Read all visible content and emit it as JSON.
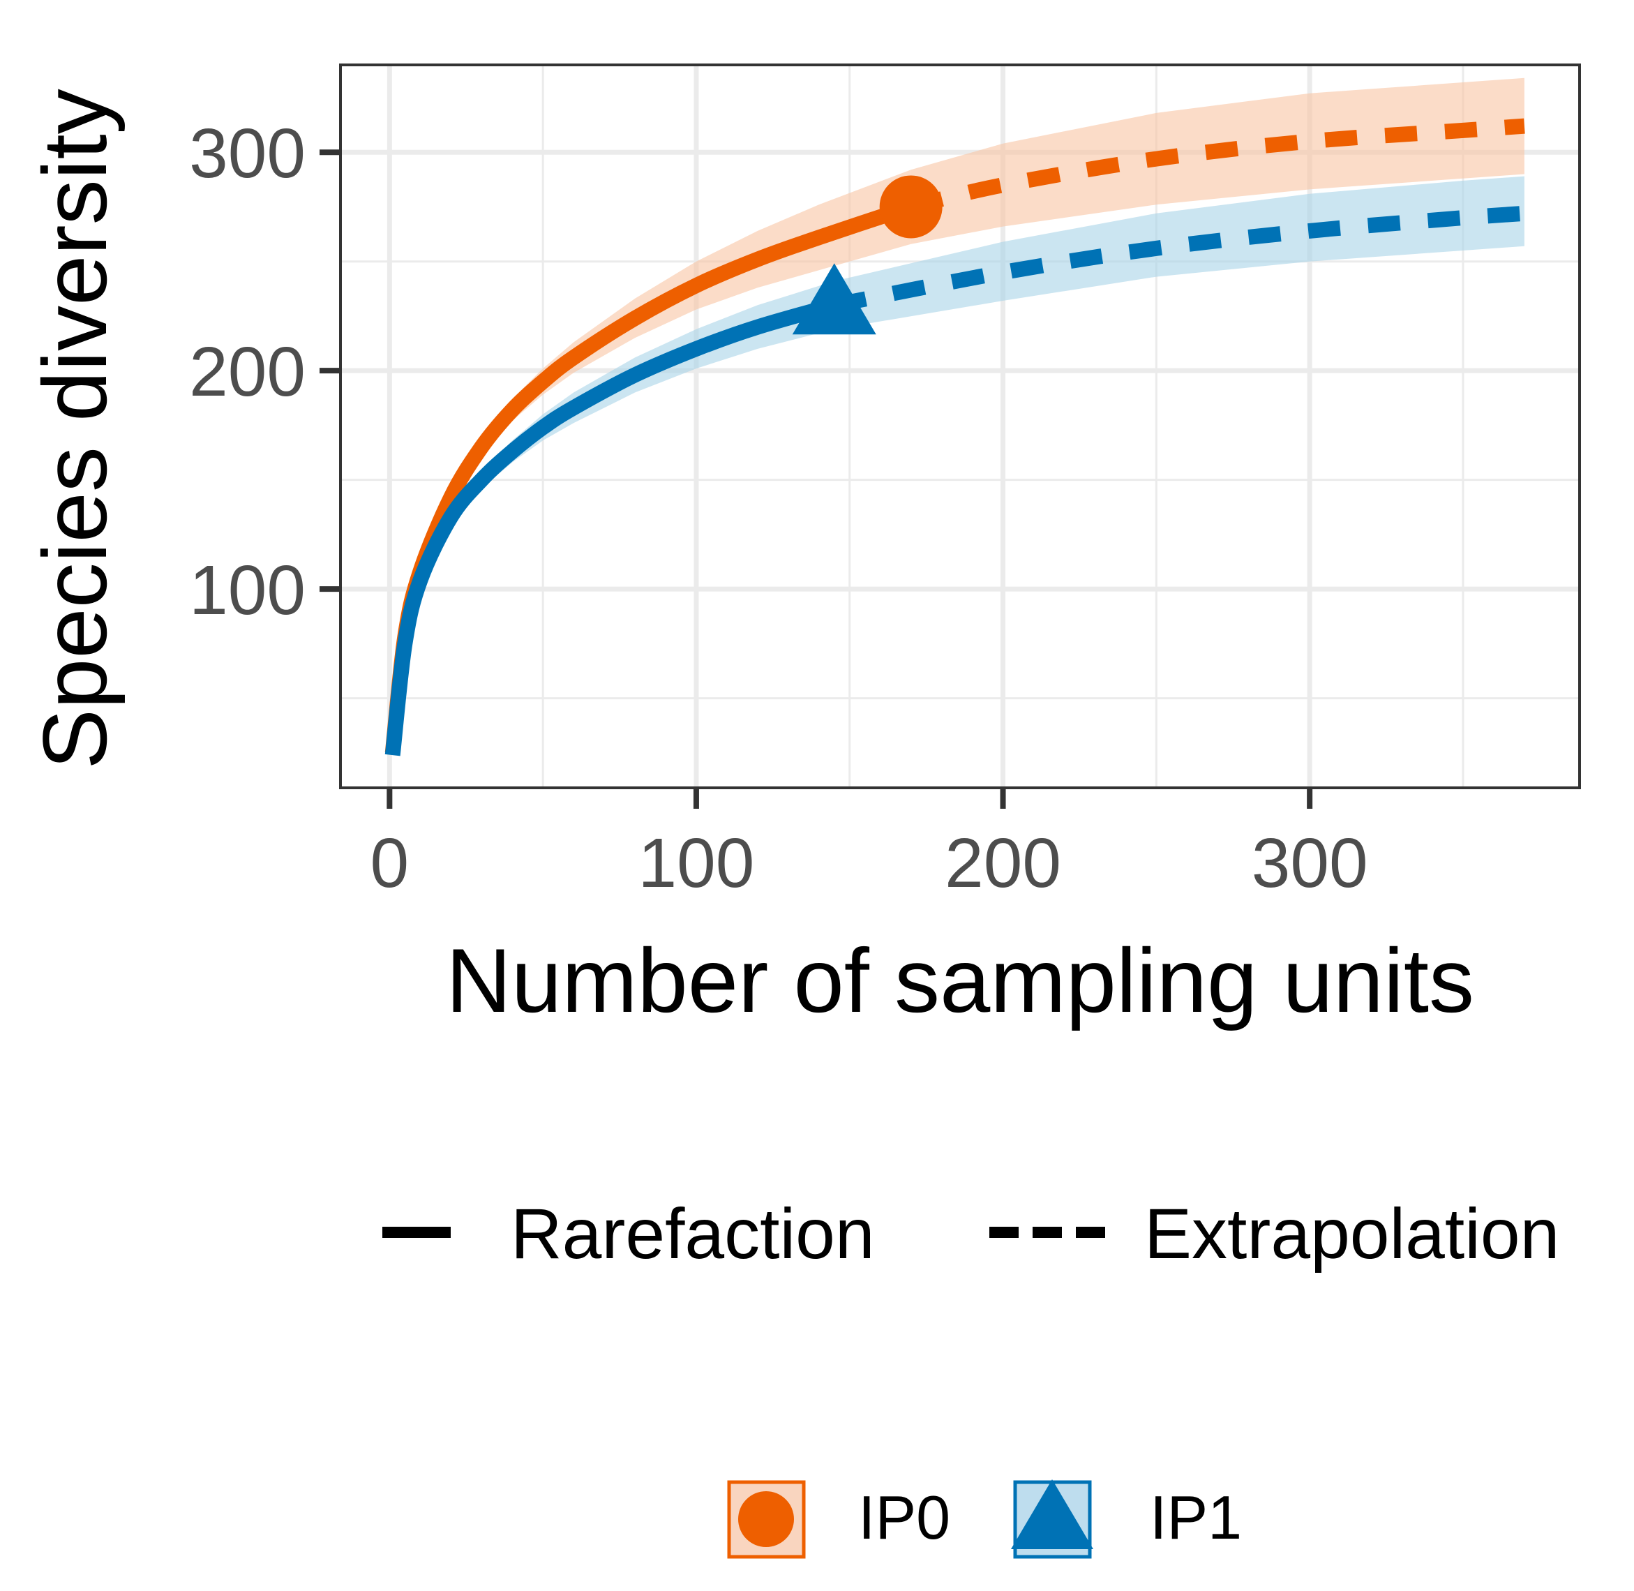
{
  "chart_data": {
    "type": "line",
    "title": "",
    "xlabel": "Number of sampling units",
    "ylabel": "Species diversity",
    "xlim": [
      -16,
      388
    ],
    "ylim": [
      9,
      340
    ],
    "x_ticks": [
      0,
      100,
      200,
      300
    ],
    "y_ticks": [
      100,
      200,
      300
    ],
    "x_tick_labels": [
      "0",
      "100",
      "200",
      "300"
    ],
    "y_tick_labels": [
      "100",
      "200",
      "300"
    ],
    "grid": true,
    "legend_linetype": {
      "position": "bottom",
      "items": [
        {
          "label": "Rarefaction",
          "style": "solid"
        },
        {
          "label": "Extrapolation",
          "style": "dashed"
        }
      ]
    },
    "legend_group": {
      "position": "bottom",
      "items": [
        {
          "label": "IP0",
          "marker": "circle",
          "color": "#EE5F00"
        },
        {
          "label": "IP1",
          "marker": "triangle",
          "color": "#0072B5"
        }
      ]
    },
    "series": [
      {
        "name": "IP0",
        "color": "#EE5F00",
        "band_color": "#F8C4A3",
        "observed": {
          "x": 170,
          "y": 275
        },
        "rarefaction": {
          "x": [
            1,
            5,
            10,
            20,
            30,
            40,
            50,
            60,
            80,
            100,
            120,
            140,
            170
          ],
          "y": [
            25,
            78,
            108,
            142,
            165,
            182,
            195,
            206,
            224,
            239,
            251,
            261,
            275
          ],
          "lower": [
            25,
            77,
            106,
            139,
            161,
            177,
            189,
            199,
            215,
            228,
            238,
            246,
            258
          ],
          "upper": [
            25,
            79,
            110,
            145,
            169,
            187,
            201,
            213,
            233,
            250,
            264,
            276,
            292
          ]
        },
        "extrapolation": {
          "x": [
            170,
            200,
            250,
            300,
            350,
            370
          ],
          "y": [
            275,
            285,
            297,
            305,
            310,
            312
          ],
          "lower": [
            258,
            266,
            276,
            283,
            288,
            290
          ],
          "upper": [
            292,
            304,
            318,
            327,
            332,
            334
          ]
        }
      },
      {
        "name": "IP1",
        "color": "#0072B5",
        "band_color": "#A8D3E8",
        "observed": {
          "x": 145,
          "y": 230
        },
        "rarefaction": {
          "x": [
            1,
            5,
            10,
            20,
            30,
            40,
            50,
            60,
            80,
            100,
            120,
            145
          ],
          "y": [
            24,
            75,
            104,
            133,
            150,
            163,
            174,
            183,
            198,
            210,
            220,
            230
          ],
          "lower": [
            24,
            74,
            102,
            130,
            146,
            158,
            168,
            176,
            190,
            201,
            210,
            219
          ],
          "upper": [
            24,
            76,
            106,
            136,
            154,
            168,
            180,
            190,
            206,
            219,
            230,
            241
          ]
        },
        "extrapolation": {
          "x": [
            145,
            200,
            250,
            300,
            350,
            370
          ],
          "y": [
            230,
            245,
            256,
            264,
            270,
            272
          ],
          "lower": [
            219,
            232,
            243,
            250,
            255,
            257
          ],
          "upper": [
            241,
            259,
            272,
            281,
            287,
            289
          ]
        }
      }
    ]
  }
}
